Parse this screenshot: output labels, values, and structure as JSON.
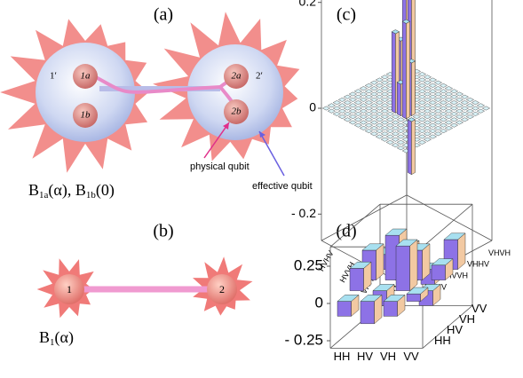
{
  "panels": {
    "a": {
      "label": "(a)",
      "node_labels": [
        "1′",
        "1a",
        "1b",
        "2a",
        "2b",
        "2′"
      ],
      "annotations": [
        "physical qubit",
        "effective qubit"
      ],
      "formula": [
        "B",
        "1a",
        "(α), ",
        "B",
        "1b",
        "(0)"
      ]
    },
    "b": {
      "label": "(b)",
      "node_labels": [
        "1",
        "2"
      ],
      "formula": [
        "B",
        "1",
        "(α)"
      ]
    },
    "c": {
      "label": "(c)",
      "zlim": [
        -0.25,
        0.32
      ],
      "zticks": [
        0.2,
        0,
        {
          "value": -0.2,
          "label": "- 0.2"
        }
      ],
      "x_labels": [
        "HVHV",
        "HVVH",
        "VHHV",
        "VHVH"
      ],
      "y_labels": [
        "HVHV",
        "HVVH",
        "VHHV",
        "VHVH"
      ],
      "bars": [
        {
          "row": 6,
          "col": 9,
          "value": 0.22
        },
        {
          "row": 7,
          "col": 9,
          "value": 0.25
        },
        {
          "row": 6,
          "col": 8,
          "value": 0.12
        },
        {
          "row": 9,
          "col": 6,
          "value": 0.18
        },
        {
          "row": 9,
          "col": 7,
          "value": 0.1
        },
        {
          "row": 8,
          "col": 8,
          "value": 0.08
        },
        {
          "row": 7,
          "col": 6,
          "value": 0.15
        },
        {
          "row": 10,
          "col": 6,
          "value": -0.1
        },
        {
          "row": 8,
          "col": 6,
          "value": 0.06
        }
      ]
    },
    "d": {
      "label": "(d)",
      "zlim": [
        -0.3,
        0.38
      ],
      "zticks": [
        0.25,
        0,
        {
          "value": -0.25,
          "label": "- 0.25"
        }
      ],
      "x_labels": [
        "HH",
        "HV",
        "VH",
        "VV"
      ],
      "y_labels": [
        "HH",
        "HV",
        "VH",
        "VV"
      ],
      "values": [
        [
          -0.1,
          0.15,
          0.2,
          0.1
        ],
        [
          -0.15,
          -0.1,
          0.3,
          0.15
        ],
        [
          -0.1,
          0.3,
          0.2,
          -0.1
        ],
        [
          0.05,
          -0.1,
          0.1,
          0.2
        ]
      ]
    }
  }
}
